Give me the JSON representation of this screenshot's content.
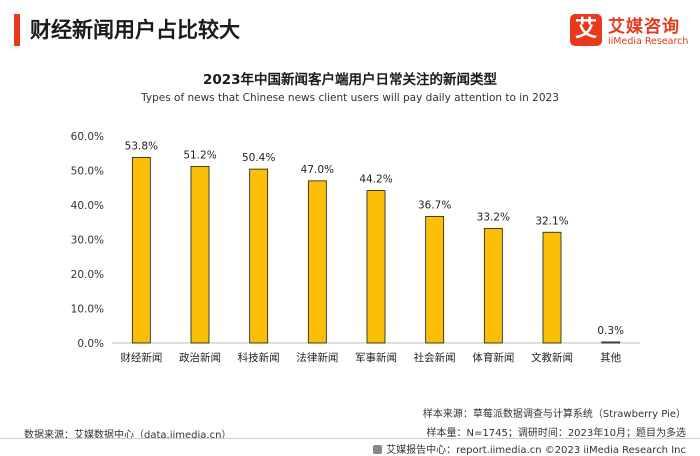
{
  "header": {
    "title": "财经新闻用户占比较大",
    "brand_color": "#e8391d"
  },
  "logo": {
    "mark": "艾",
    "name_cn": "艾媒咨询",
    "name_en": "iiMedia Research",
    "icon": "iimedia-logo-icon"
  },
  "chart_data": {
    "type": "bar",
    "title": "2023年中国新闻客户端用户日常关注的新闻类型",
    "subtitle": "Types of news that Chinese news client users will pay daily attention to in 2023",
    "categories": [
      "财经新闻",
      "政治新闻",
      "科技新闻",
      "法律新闻",
      "军事新闻",
      "社会新闻",
      "体育新闻",
      "文教新闻",
      "其他"
    ],
    "values": [
      53.8,
      51.2,
      50.4,
      47.0,
      44.2,
      36.7,
      33.2,
      32.1,
      0.3
    ],
    "value_labels": [
      "53.8%",
      "51.2%",
      "50.4%",
      "47.0%",
      "44.2%",
      "36.7%",
      "33.2%",
      "32.1%",
      "0.3%"
    ],
    "ylim": [
      0,
      60
    ],
    "yticks": [
      0,
      10,
      20,
      30,
      40,
      50,
      60
    ],
    "ytick_labels": [
      "0.0%",
      "10.0%",
      "20.0%",
      "30.0%",
      "40.0%",
      "50.0%",
      "60.0%"
    ],
    "xlabel": "",
    "ylabel": "",
    "grid": false,
    "bar_color": "#fcbf07",
    "bar_edge_color": "#1a1a1a"
  },
  "footer": {
    "source_left": "数据来源：艾媒数据中心（data.iimedia.cn）",
    "sample_source": "样本来源：草莓派数据调查与计算系统（Strawberry Pie）",
    "sample_info": "样本量：N=1745；调研时间：2023年10月；题目为多选",
    "report_center": "艾媒报告中心：report.iimedia.cn  ©2023  iiMedia Research  Inc"
  }
}
